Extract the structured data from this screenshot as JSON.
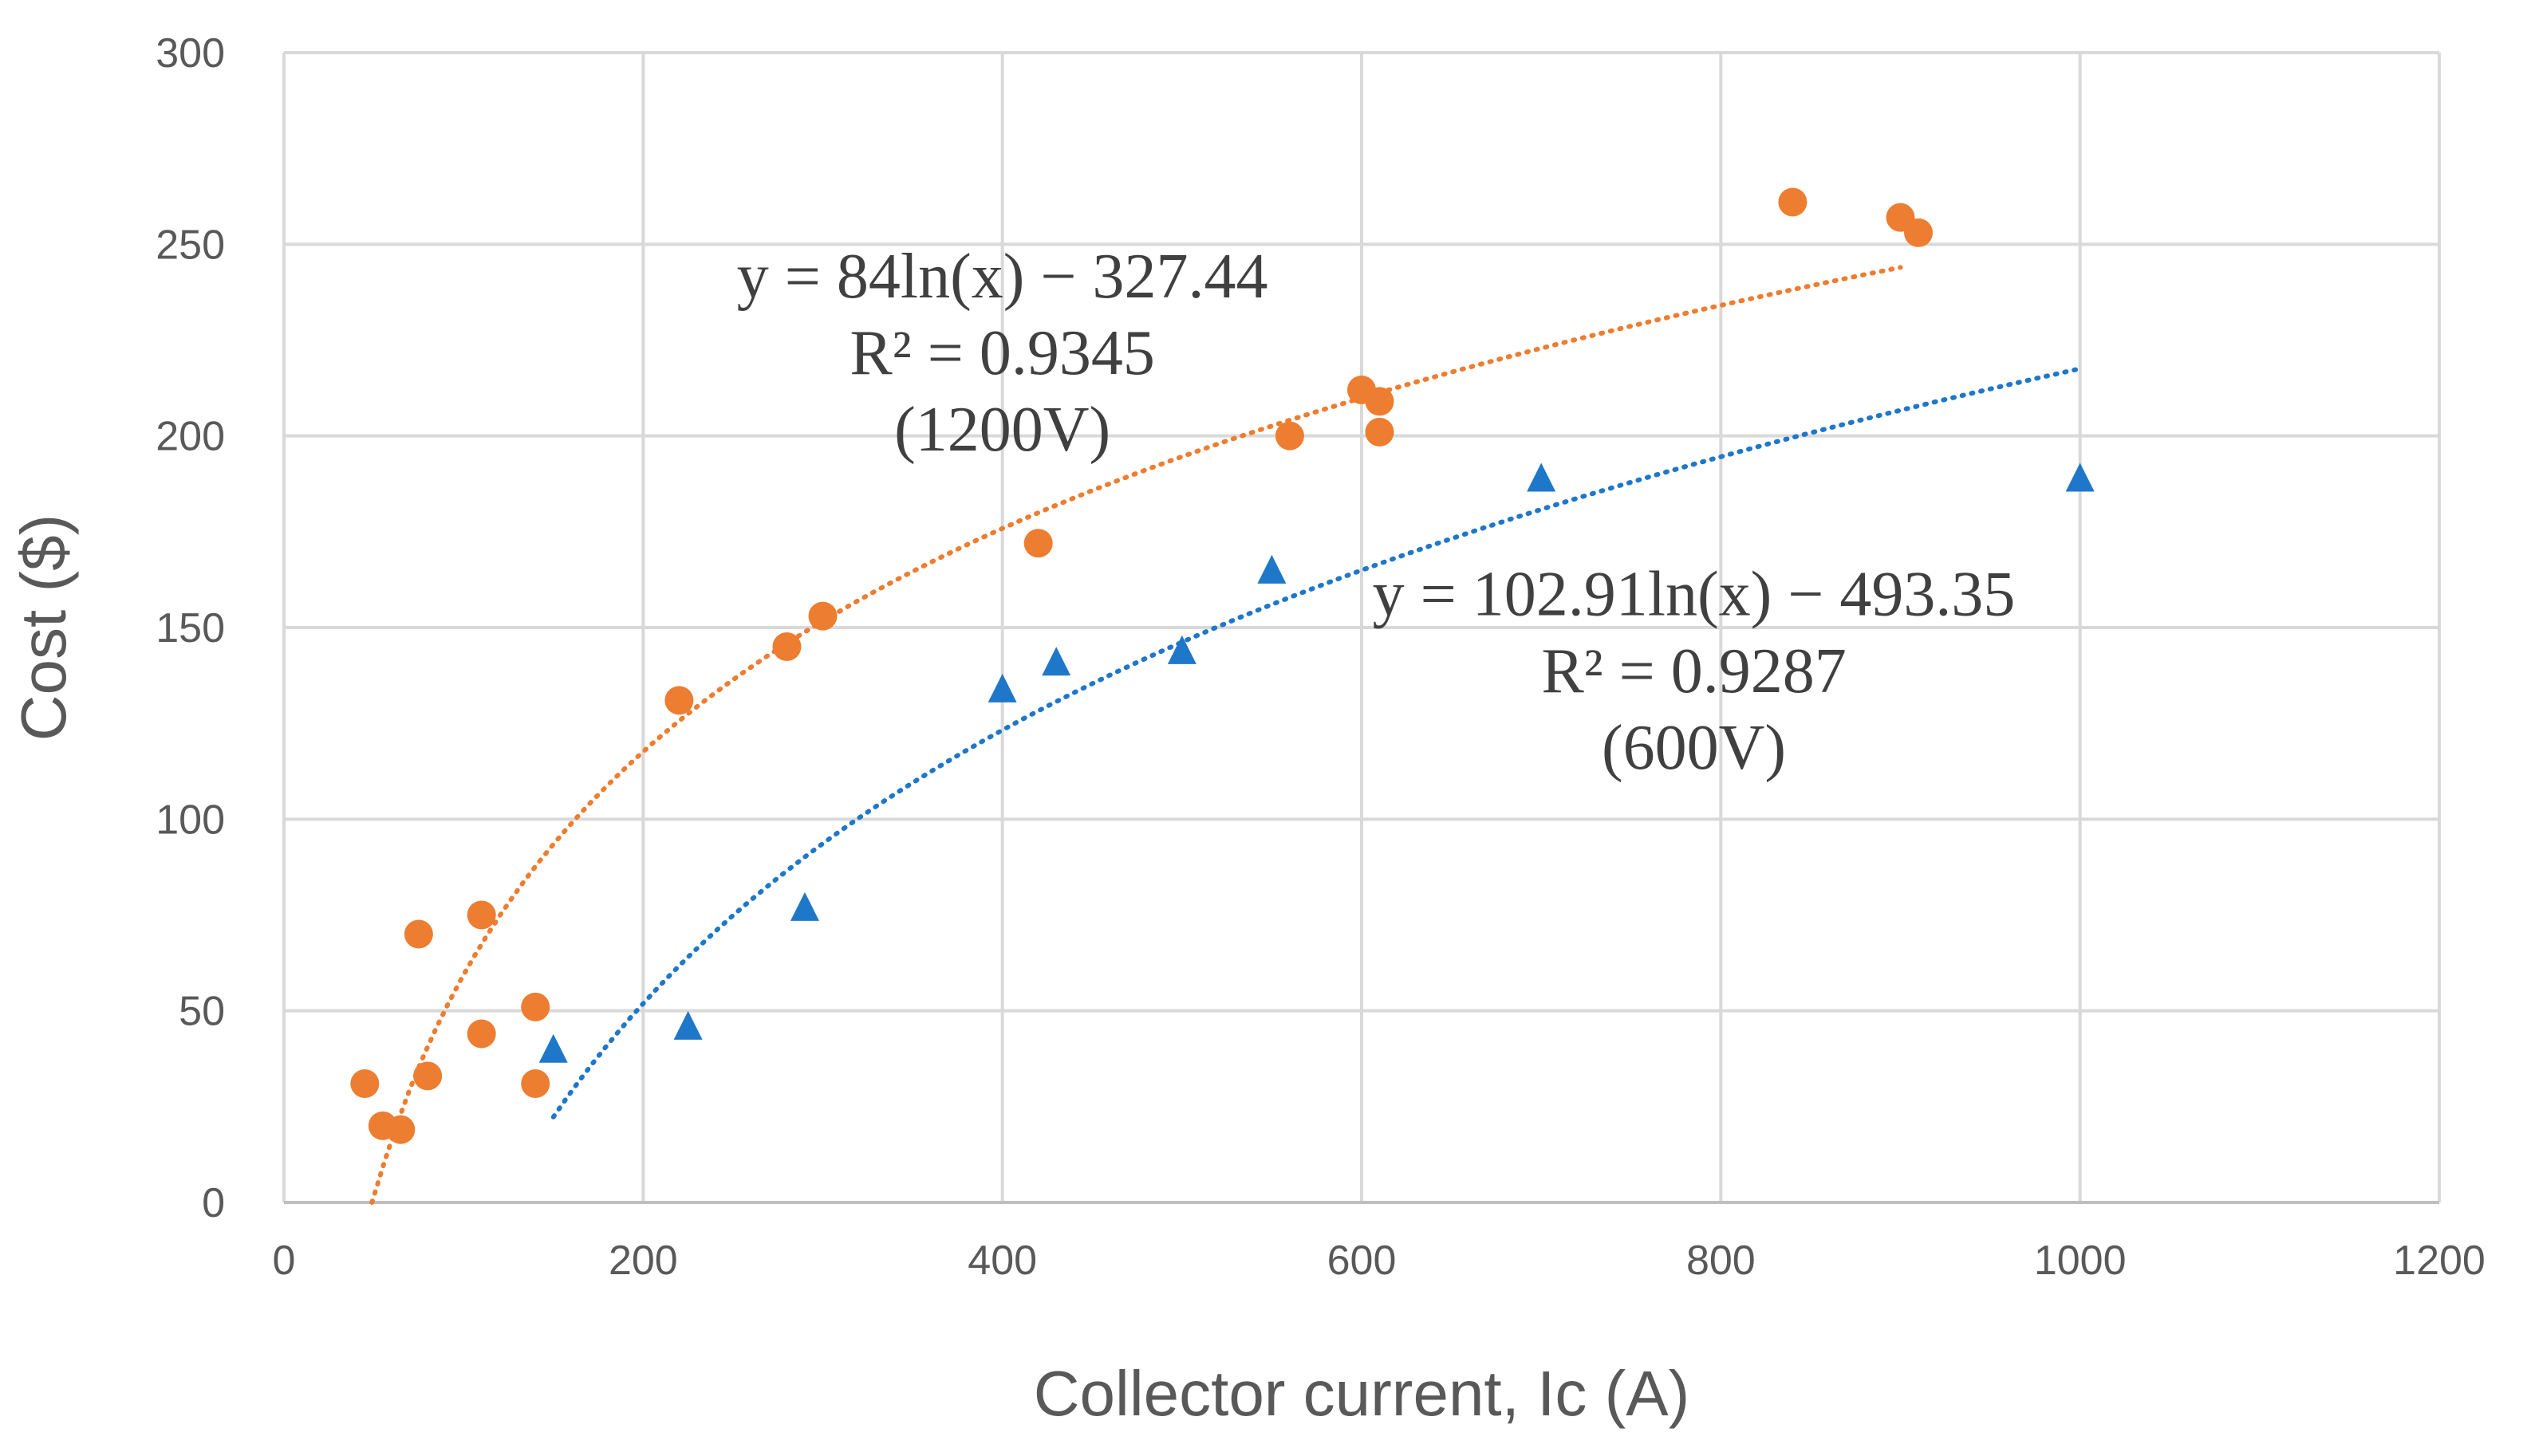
{
  "chart_data": {
    "type": "scatter",
    "title": "",
    "xlabel": "Collector current, Ic (A)",
    "ylabel": "Cost ($)",
    "xlim": [
      0,
      1200
    ],
    "ylim": [
      0,
      300
    ],
    "xticks": [
      0,
      200,
      400,
      600,
      800,
      1000,
      1200
    ],
    "yticks": [
      0,
      50,
      100,
      150,
      200,
      250,
      300
    ],
    "xtick_labels": [
      "0",
      "200",
      "400",
      "600",
      "800",
      "1000",
      "1200"
    ],
    "ytick_labels": [
      "0",
      "50",
      "100",
      "150",
      "200",
      "250",
      "300"
    ],
    "grid": true,
    "legend": "none",
    "series": [
      {
        "name": "1200V",
        "marker": "circle",
        "color": "#ED7D31",
        "points": [
          [
            45,
            31
          ],
          [
            55,
            20
          ],
          [
            65,
            19
          ],
          [
            75,
            70
          ],
          [
            80,
            33
          ],
          [
            110,
            75
          ],
          [
            110,
            44
          ],
          [
            140,
            51
          ],
          [
            140,
            31
          ],
          [
            220,
            131
          ],
          [
            280,
            145
          ],
          [
            300,
            153
          ],
          [
            420,
            172
          ],
          [
            560,
            200
          ],
          [
            600,
            212
          ],
          [
            610,
            209
          ],
          [
            610,
            201
          ],
          [
            840,
            261
          ],
          [
            900,
            257
          ],
          [
            910,
            253
          ]
        ],
        "trendline": {
          "type": "logarithmic",
          "a": 84,
          "b": -327.44,
          "x_range": [
            49,
            900
          ],
          "equation": "y = 84ln(x) − 327.44",
          "r2": "R² = 0.9345",
          "label": "(1200V)"
        }
      },
      {
        "name": "600V",
        "marker": "triangle",
        "color": "#1F77C9",
        "points": [
          [
            150,
            40
          ],
          [
            225,
            46
          ],
          [
            290,
            77
          ],
          [
            400,
            134
          ],
          [
            430,
            141
          ],
          [
            500,
            144
          ],
          [
            550,
            165
          ],
          [
            700,
            189
          ],
          [
            1000,
            189
          ]
        ],
        "trendline": {
          "type": "logarithmic",
          "a": 102.91,
          "b": -493.35,
          "x_range": [
            150,
            1000
          ],
          "equation": "y = 102.91ln(x) − 493.35",
          "r2": "R² = 0.9287",
          "label": "(600V)"
        }
      }
    ],
    "annotations": [
      {
        "series": "1200V",
        "anchor_x": 400,
        "anchor_y": 242,
        "line_spacing_y": 20
      },
      {
        "series": "600V",
        "anchor_x": 785,
        "anchor_y": 159,
        "line_spacing_y": 20
      }
    ]
  }
}
